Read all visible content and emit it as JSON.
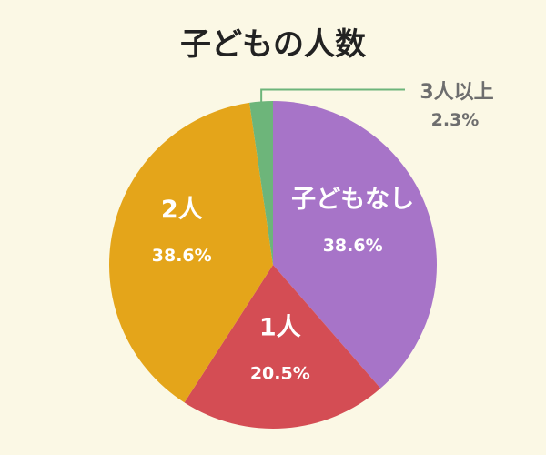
{
  "chart_data": {
    "type": "pie",
    "title": "子どもの人数",
    "start_angle_deg": 0,
    "direction": "clockwise",
    "slices": [
      {
        "label": "子どもなし",
        "value": 38.6,
        "value_label": "38.6%",
        "color": "#a774c8"
      },
      {
        "label": "1人",
        "value": 20.5,
        "value_label": "20.5%",
        "color": "#d44d54"
      },
      {
        "label": "2人",
        "value": 38.6,
        "value_label": "38.6%",
        "color": "#e4a51a"
      },
      {
        "label": "3人以上",
        "value": 2.3,
        "value_label": "2.3%",
        "color": "#6db57a"
      }
    ],
    "legend": "none",
    "leader_line_color": "#6db57a"
  }
}
